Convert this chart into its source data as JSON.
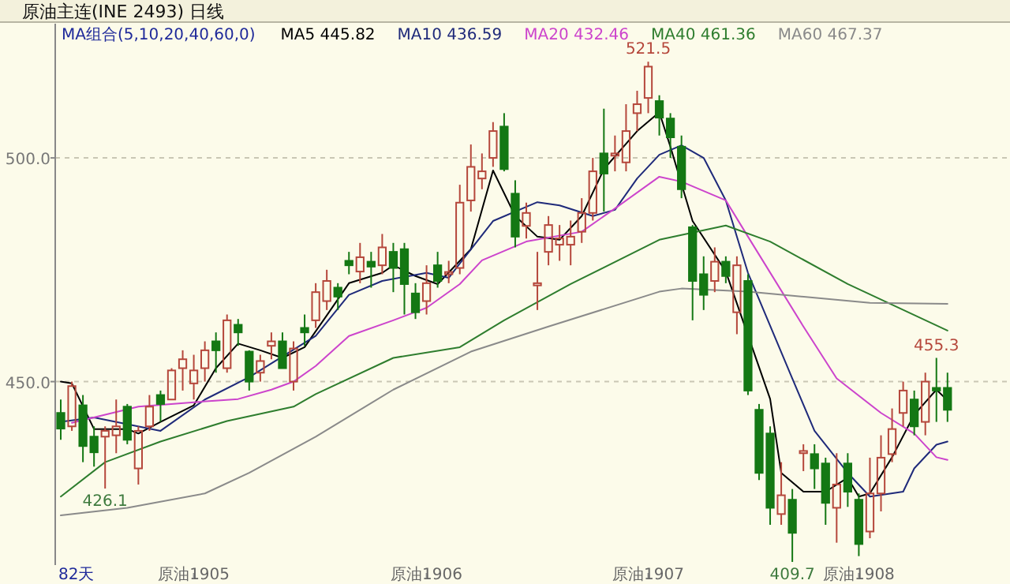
{
  "chart_data": {
    "type": "candlestick",
    "title": "原油主连(INE 2493)  日线",
    "legend_title": "MA组合(5,10,20,40,60,0)",
    "legend": "top",
    "grid": "y",
    "ylim": [
      409,
      530
    ],
    "yticks": [
      {
        "value": 450,
        "label": "450.0"
      },
      {
        "value": 500,
        "label": "500.0"
      }
    ],
    "categories": [
      null,
      null,
      null,
      null,
      null,
      null,
      null,
      null,
      null,
      null,
      null,
      null,
      "原油1905",
      null,
      null,
      null,
      null,
      null,
      null,
      null,
      null,
      null,
      null,
      null,
      null,
      null,
      null,
      null,
      null,
      null,
      null,
      null,
      null,
      "原油1906",
      null,
      null,
      null,
      null,
      null,
      null,
      null,
      null,
      null,
      null,
      null,
      null,
      null,
      null,
      null,
      null,
      null,
      null,
      null,
      "原油1907",
      null,
      null,
      null,
      null,
      null,
      null,
      null,
      null,
      null,
      null,
      null,
      null,
      null,
      null,
      null,
      null,
      null,
      null,
      "原油1908",
      null,
      null,
      null,
      null,
      null,
      null,
      null,
      null
    ],
    "ohlc": [
      [
        443,
        446,
        437,
        439.5
      ],
      [
        440,
        450,
        439,
        449
      ],
      [
        444.7,
        447,
        432,
        435.6
      ],
      [
        437.7,
        440,
        431,
        434.2
      ],
      [
        437.7,
        440,
        426.1,
        439
      ],
      [
        438,
        446,
        434,
        440
      ],
      [
        444.4,
        445,
        436,
        437
      ],
      [
        430.6,
        440,
        427,
        439
      ],
      [
        440,
        447,
        439,
        444.4
      ],
      [
        447,
        448,
        441,
        445
      ],
      [
        446,
        453,
        446,
        452.5
      ],
      [
        453,
        457,
        448,
        455
      ],
      [
        449.6,
        456,
        446,
        452.5
      ],
      [
        453,
        459,
        450,
        457
      ],
      [
        459,
        461,
        452,
        457
      ],
      [
        453,
        465,
        452,
        463.7
      ],
      [
        462.7,
        464,
        458,
        461
      ],
      [
        456.7,
        457,
        448,
        450
      ],
      [
        452,
        456,
        450,
        454.6
      ],
      [
        458,
        461,
        455,
        459
      ],
      [
        459,
        461,
        453,
        453
      ],
      [
        450,
        459,
        448,
        457.4
      ],
      [
        462,
        465,
        458,
        461
      ],
      [
        463.7,
        472,
        462,
        470
      ],
      [
        468,
        475,
        466,
        472.5
      ],
      [
        471,
        472,
        466,
        469
      ],
      [
        477,
        479,
        474,
        476
      ],
      [
        474.6,
        481,
        472,
        477.8
      ],
      [
        476.8,
        479,
        471,
        475.7
      ],
      [
        476,
        483,
        474,
        480
      ],
      [
        479,
        481,
        470,
        475.4
      ],
      [
        479.6,
        481,
        465,
        471.8
      ],
      [
        469.7,
        472,
        464,
        465.5
      ],
      [
        468,
        476,
        465,
        472
      ],
      [
        476,
        479,
        471,
        472.5
      ],
      [
        474,
        477,
        472,
        474.5
      ],
      [
        475.4,
        494,
        474,
        490
      ],
      [
        490.5,
        503,
        488,
        498
      ],
      [
        495.4,
        501,
        493,
        497
      ],
      [
        500,
        508,
        498,
        506
      ],
      [
        507,
        510,
        497,
        497.5
      ],
      [
        492,
        495,
        480,
        482.4
      ],
      [
        484.8,
        490,
        482,
        487.7
      ],
      [
        471.5,
        479,
        466,
        472
      ],
      [
        479,
        487,
        476,
        485
      ],
      [
        480.6,
        485,
        477,
        482
      ],
      [
        480.6,
        486,
        476,
        482.4
      ],
      [
        483.5,
        491,
        481,
        487.7
      ],
      [
        487.7,
        500,
        486,
        497
      ],
      [
        501,
        511,
        488,
        496.5
      ],
      [
        500.5,
        505,
        497,
        501
      ],
      [
        499,
        512,
        497,
        506
      ],
      [
        510,
        515,
        506,
        512
      ],
      [
        513.4,
        521.5,
        510,
        520.4
      ],
      [
        512.7,
        514,
        505,
        509
      ],
      [
        508.8,
        510,
        500,
        504.6
      ],
      [
        502.5,
        505,
        491,
        493
      ],
      [
        484.5,
        485,
        463.7,
        472.5
      ],
      [
        474,
        478,
        466,
        469.4
      ],
      [
        472.5,
        480,
        470,
        476.8
      ],
      [
        476.8,
        478,
        472,
        473.6
      ],
      [
        465.5,
        478,
        460.6,
        476
      ],
      [
        472.5,
        474,
        447,
        448
      ],
      [
        443.7,
        445,
        428,
        429.6
      ],
      [
        438.4,
        440,
        418,
        421.8
      ],
      [
        420.4,
        432,
        418,
        424.6
      ],
      [
        423.6,
        426,
        409.7,
        416.2
      ],
      [
        434,
        436,
        430,
        434.5
      ],
      [
        433.8,
        436,
        426,
        430.6
      ],
      [
        431.7,
        433,
        418,
        422.9
      ],
      [
        421.8,
        434,
        414,
        427
      ],
      [
        431.7,
        434,
        422,
        425.4
      ],
      [
        423.6,
        425,
        411,
        413.7
      ],
      [
        416.5,
        433,
        415,
        425
      ],
      [
        425,
        438,
        421,
        433
      ],
      [
        433.8,
        444,
        432,
        439.4
      ],
      [
        443,
        450,
        440,
        448
      ],
      [
        446,
        448,
        438,
        440
      ],
      [
        441,
        452,
        438,
        450
      ],
      [
        448.6,
        455.3,
        441,
        448
      ],
      [
        448.6,
        452,
        441,
        443.7
      ]
    ],
    "series": [
      {
        "name": "MA5 445.82",
        "color": "#000000",
        "type": "line",
        "values": [
          450,
          449.6,
          null,
          439.4,
          null,
          null,
          439.4,
          438.4,
          null,
          441,
          null,
          null,
          444.7,
          null,
          453,
          null,
          458.5,
          null,
          457,
          null,
          455.3,
          null,
          457.7,
          null,
          464.8,
          null,
          472,
          null,
          null,
          474.3,
          476,
          null,
          473.6,
          null,
          471.8,
          null,
          null,
          479.6,
          null,
          497.2,
          null,
          487,
          null,
          482.4,
          null,
          481.7,
          null,
          487,
          null,
          497.5,
          null,
          null,
          506,
          null,
          510.2,
          502.5,
          null,
          485.9,
          null,
          null,
          474.6,
          null,
          null,
          null,
          446.1,
          429.6,
          null,
          425.4,
          null,
          425.4,
          null,
          428.5,
          424.3,
          425,
          null,
          433.1,
          null,
          442.6,
          null,
          448.2,
          445.8
        ]
      },
      {
        "name": "MA10 436.59",
        "color": "#1f2a7a",
        "type": "line",
        "values": [
          441,
          null,
          null,
          442,
          null,
          null,
          null,
          null,
          null,
          439,
          null,
          null,
          null,
          446,
          null,
          null,
          null,
          451,
          null,
          null,
          null,
          null,
          null,
          460.2,
          null,
          null,
          469.4,
          null,
          null,
          472.5,
          null,
          null,
          null,
          474.3,
          null,
          473.2,
          476.4,
          null,
          null,
          485.9,
          null,
          null,
          null,
          490.1,
          null,
          489.4,
          null,
          null,
          487,
          null,
          488.4,
          null,
          495.4,
          null,
          500.7,
          null,
          502.8,
          null,
          500,
          null,
          490.5,
          null,
          474.3,
          null,
          null,
          null,
          450.7,
          null,
          439,
          null,
          null,
          429.6,
          null,
          424.3,
          null,
          null,
          425.4,
          430.6,
          null,
          435.9,
          436.6
        ]
      },
      {
        "name": "MA20 432.46",
        "color": "#cc44cc",
        "type": "line",
        "values": [
          null,
          440.8,
          null,
          null,
          442.6,
          null,
          null,
          444.4,
          null,
          null,
          null,
          null,
          445.4,
          null,
          null,
          null,
          446.1,
          null,
          null,
          448.2,
          null,
          450,
          null,
          453.5,
          null,
          null,
          460.2,
          null,
          null,
          null,
          463.7,
          null,
          null,
          466.5,
          null,
          null,
          471.8,
          null,
          477.1,
          null,
          null,
          null,
          481.3,
          null,
          null,
          null,
          null,
          483.5,
          null,
          null,
          488.7,
          null,
          null,
          null,
          495.8,
          null,
          494.7,
          null,
          null,
          null,
          490.5,
          null,
          482.4,
          null,
          null,
          null,
          null,
          462.3,
          null,
          null,
          450.7,
          null,
          null,
          null,
          443,
          null,
          null,
          438.4,
          null,
          433.1,
          432.5
        ]
      },
      {
        "name": "MA40 461.36",
        "color": "#2e7d2e",
        "type": "line",
        "values": [
          424.3,
          null,
          null,
          null,
          432,
          null,
          null,
          null,
          null,
          436.6,
          null,
          null,
          null,
          null,
          null,
          441.2,
          null,
          null,
          null,
          null,
          null,
          444.4,
          null,
          447.2,
          null,
          null,
          null,
          null,
          null,
          null,
          455.3,
          null,
          null,
          null,
          null,
          null,
          457.7,
          null,
          null,
          null,
          463.7,
          null,
          null,
          null,
          null,
          null,
          471.8,
          null,
          null,
          null,
          null,
          null,
          null,
          null,
          481.7,
          null,
          null,
          null,
          null,
          null,
          484.9,
          null,
          null,
          null,
          481.3,
          null,
          null,
          null,
          null,
          null,
          null,
          471.8,
          null,
          null,
          null,
          null,
          null,
          null,
          null,
          null,
          461.4
        ]
      },
      {
        "name": "MA60 467.37",
        "color": "#8a8a8a",
        "type": "line",
        "values": [
          420.1,
          null,
          null,
          null,
          null,
          null,
          421.8,
          null,
          null,
          null,
          null,
          null,
          null,
          425,
          null,
          null,
          null,
          429.6,
          null,
          null,
          null,
          null,
          null,
          437.7,
          null,
          null,
          null,
          null,
          null,
          null,
          448.2,
          null,
          null,
          null,
          null,
          null,
          null,
          456.7,
          null,
          null,
          null,
          null,
          null,
          null,
          462.3,
          null,
          null,
          null,
          null,
          null,
          null,
          null,
          null,
          null,
          470.1,
          null,
          470.8,
          null,
          null,
          null,
          null,
          null,
          470.1,
          null,
          null,
          null,
          null,
          null,
          null,
          null,
          null,
          null,
          null,
          467.6,
          null,
          null,
          null,
          null,
          null,
          null,
          467.4
        ]
      }
    ],
    "annotations": [
      {
        "text": "426.1",
        "y": 426.1
      },
      {
        "text": "521.5",
        "y": 521.5
      },
      {
        "text": "409.7",
        "y": 409.7
      },
      {
        "text": "455.3",
        "y": 455.3
      },
      "82天"
    ]
  }
}
